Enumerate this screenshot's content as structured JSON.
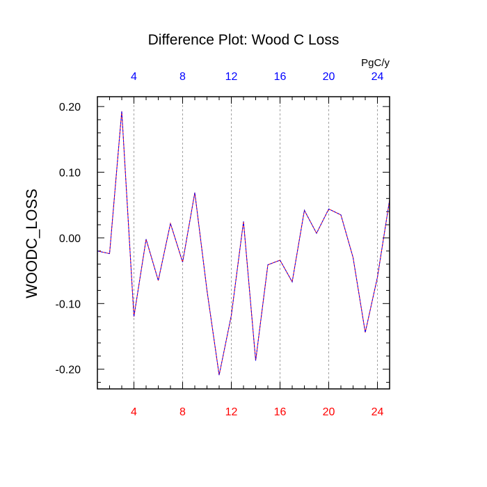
{
  "chart_data": {
    "type": "line",
    "title": "Difference Plot: Wood C Loss",
    "ylabel": "WOODC_LOSS",
    "units_label": "PgC/y",
    "xlim": [
      1,
      25
    ],
    "ylim": [
      -0.23,
      0.215
    ],
    "x_ticks": [
      4,
      8,
      12,
      16,
      20,
      24
    ],
    "x_tick_labels": [
      "4",
      "8",
      "12",
      "16",
      "20",
      "24"
    ],
    "x_minor_ticks": [
      1,
      2,
      3,
      5,
      6,
      7,
      9,
      10,
      11,
      13,
      14,
      15,
      17,
      18,
      19,
      21,
      22,
      23,
      25
    ],
    "y_ticks": [
      -0.2,
      -0.1,
      0.0,
      0.1,
      0.2
    ],
    "y_tick_labels": [
      "-0.20",
      "-0.10",
      "0.00",
      "0.10",
      "0.20"
    ],
    "y_minor_ticks": [
      -0.22,
      -0.18,
      -0.16,
      -0.14,
      -0.12,
      -0.08,
      -0.06,
      -0.04,
      -0.02,
      0.02,
      0.04,
      0.06,
      0.08,
      0.12,
      0.14,
      0.16,
      0.18
    ],
    "grid": "vertical dashed at major x ticks",
    "colors": {
      "bottom_axis_labels": "#ff0000",
      "top_axis_labels": "#0000ff",
      "line_primary": "#ff0000",
      "line_overlay": "#0000ff"
    },
    "x": [
      1,
      2,
      3,
      4,
      5,
      6,
      7,
      8,
      9,
      10,
      11,
      12,
      13,
      14,
      15,
      16,
      17,
      18,
      19,
      20,
      21,
      22,
      23,
      24,
      25
    ],
    "series": [
      {
        "values": [
          -0.02,
          -0.024,
          0.193,
          -0.12,
          -0.002,
          -0.065,
          0.022,
          -0.037,
          0.069,
          -0.08,
          -0.209,
          -0.118,
          0.025,
          -0.187,
          -0.041,
          -0.034,
          -0.067,
          0.042,
          0.007,
          0.044,
          0.035,
          -0.03,
          -0.144,
          -0.06,
          0.058
        ]
      }
    ]
  }
}
